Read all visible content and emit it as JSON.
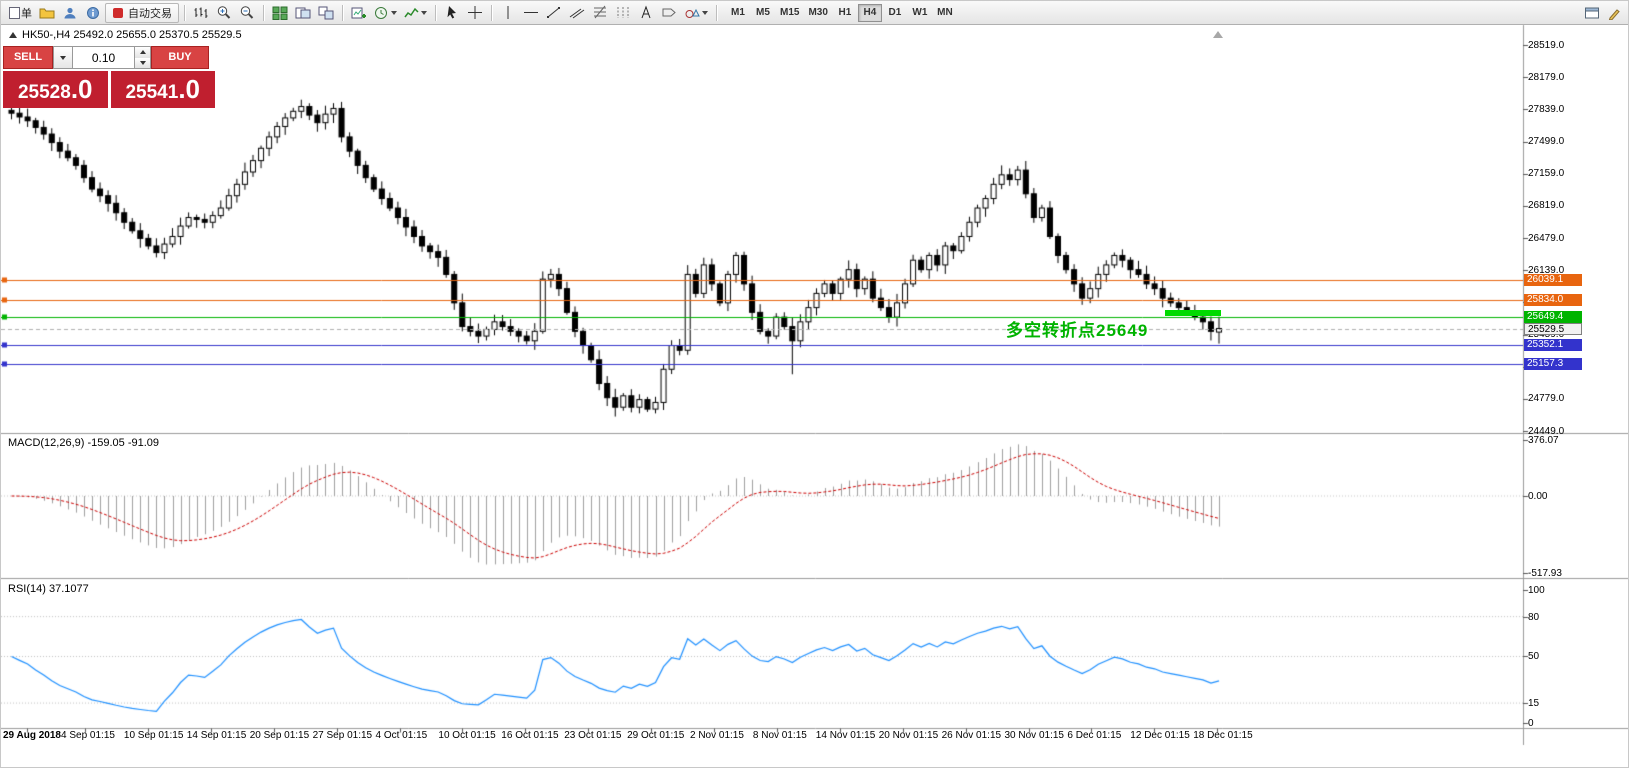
{
  "toolbar": {
    "new_order_label": "单",
    "autotrade_label": "自动交易",
    "timeframes": [
      "M1",
      "M5",
      "M15",
      "M30",
      "H1",
      "H4",
      "D1",
      "W1",
      "MN"
    ],
    "active_timeframe": "H4",
    "icons": [
      "new-order",
      "folder",
      "profile",
      "info",
      "autotrade",
      "chart-bars",
      "zoom-in",
      "zoom-out",
      "tile-windows",
      "cascade-windows",
      "arrange-windows",
      "new-chart",
      "profiles",
      "indicators",
      "cursor",
      "crosshair",
      "vertical-line",
      "horizontal-line",
      "trendline",
      "channel",
      "fibonacci",
      "cycles",
      "text",
      "label",
      "shapes",
      "window",
      "pencil"
    ]
  },
  "chart": {
    "title": "HK50-,H4 25492.0 25655.0 25370.5 25529.5",
    "annotation": "多空转折点25649",
    "y_axis_labels": [
      "28519.0",
      "28179.0",
      "27839.0",
      "27499.0",
      "27159.0",
      "26819.0",
      "26479.0",
      "26139.0",
      "25799.0",
      "25459.0",
      "25119.0",
      "24779.0",
      "24449.0"
    ],
    "date_labels": [
      "29 Aug 2018",
      "4 Sep 01:15",
      "10 Sep 01:15",
      "14 Sep 01:15",
      "20 Sep 01:15",
      "27 Sep 01:15",
      "4 Oct 01:15",
      "10 Oct 01:15",
      "16 Oct 01:15",
      "23 Oct 01:15",
      "29 Oct 01:15",
      "2 Nov 01:15",
      "8 Nov 01:15",
      "14 Nov 01:15",
      "20 Nov 01:15",
      "26 Nov 01:15",
      "30 Nov 01:15",
      "6 Dec 01:15",
      "12 Dec 01:15",
      "18 Dec 01:15"
    ],
    "levels": [
      {
        "price": 26039.1,
        "label": "26039.1",
        "color": "#e8650f",
        "text": "#ffffff",
        "style": "solid"
      },
      {
        "price": 25834.0,
        "label": "25834.0",
        "color": "#e8650f",
        "text": "#ffffff",
        "style": "solid"
      },
      {
        "price": 25649.4,
        "label": "25649.4",
        "color": "#00b400",
        "text": "#ffffff",
        "style": "solid"
      },
      {
        "price": 25529.5,
        "label": "25529.5",
        "color": "#b0b0b0",
        "text": "#000000",
        "style": "dashed",
        "tag_bg": "#f2f2f2"
      },
      {
        "price": 25352.1,
        "label": "25352.1",
        "color": "#3333cc",
        "text": "#ffffff",
        "style": "solid"
      },
      {
        "price": 25157.3,
        "label": "25157.3",
        "color": "#3333cc",
        "text": "#ffffff",
        "style": "solid"
      }
    ]
  },
  "trade_panel": {
    "sell_label": "SELL",
    "buy_label": "BUY",
    "volume": "0.10",
    "sell_price_main": "25528",
    "sell_price_frac": ".0",
    "buy_price_main": "25541",
    "buy_price_frac": ".0"
  },
  "macd": {
    "label": "MACD(12,26,9) -159.05 -91.09",
    "axis_labels": [
      "376.07",
      "0.00",
      "-517.93"
    ]
  },
  "rsi": {
    "label": "RSI(14) 37.1077",
    "axis_labels": [
      "100",
      "80",
      "50",
      "15",
      "0"
    ]
  },
  "colors": {
    "panel_red": "#c01f2f",
    "button_red": "#d84343",
    "annotation_green": "#00b300",
    "level_orange": "#e8650f",
    "level_green": "#00b400",
    "level_blue": "#3333cc",
    "rsi_blue": "#1e90ff",
    "macd_signal_red": "#cc0000",
    "macd_histogram_gray": "#a0a0a0"
  },
  "chart_data": {
    "type": "candlestick",
    "symbol": "HK50-",
    "timeframe": "H4",
    "ohlc_current": {
      "open": 25492.0,
      "high": 25655.0,
      "low": 25370.5,
      "close": 25529.5
    },
    "price_axis_top": 28519.0,
    "price_axis_bottom": 24449.0,
    "first_open": 27830,
    "closes": [
      27800,
      27760,
      27720,
      27650,
      27580,
      27490,
      27400,
      27330,
      27250,
      27120,
      27000,
      26930,
      26850,
      26750,
      26650,
      26560,
      26480,
      26400,
      26330,
      26420,
      26500,
      26610,
      26700,
      26680,
      26650,
      26720,
      26800,
      26930,
      27050,
      27180,
      27300,
      27430,
      27550,
      27660,
      27750,
      27820,
      27870,
      27780,
      27700,
      27790,
      27850,
      27550,
      27400,
      27250,
      27120,
      27000,
      26900,
      26800,
      26700,
      26600,
      26500,
      26400,
      26340,
      26280,
      26100,
      25800,
      25550,
      25500,
      25450,
      25520,
      25600,
      25550,
      25500,
      25450,
      25400,
      25500,
      26050,
      26100,
      25950,
      25700,
      25500,
      25350,
      25200,
      24950,
      24800,
      24700,
      24820,
      24700,
      24780,
      24680,
      24750,
      25100,
      25350,
      25300,
      26100,
      25900,
      26200,
      26000,
      25800,
      26100,
      26300,
      26000,
      25700,
      25500,
      25450,
      25650,
      25550,
      25400,
      25600,
      25750,
      25900,
      26000,
      25900,
      26050,
      26150,
      25950,
      26050,
      25850,
      25750,
      25650,
      25800,
      26000,
      26250,
      26150,
      26300,
      26200,
      26400,
      26350,
      26500,
      26650,
      26800,
      26900,
      27050,
      27150,
      27100,
      27200,
      26950,
      26700,
      26800,
      26500,
      26300,
      26150,
      26000,
      25850,
      25950,
      26100,
      26200,
      26300,
      26250,
      26150,
      26100,
      26000,
      25950,
      25850,
      25800,
      25750,
      25700,
      25650,
      25600,
      25500,
      25529.5
    ]
  }
}
